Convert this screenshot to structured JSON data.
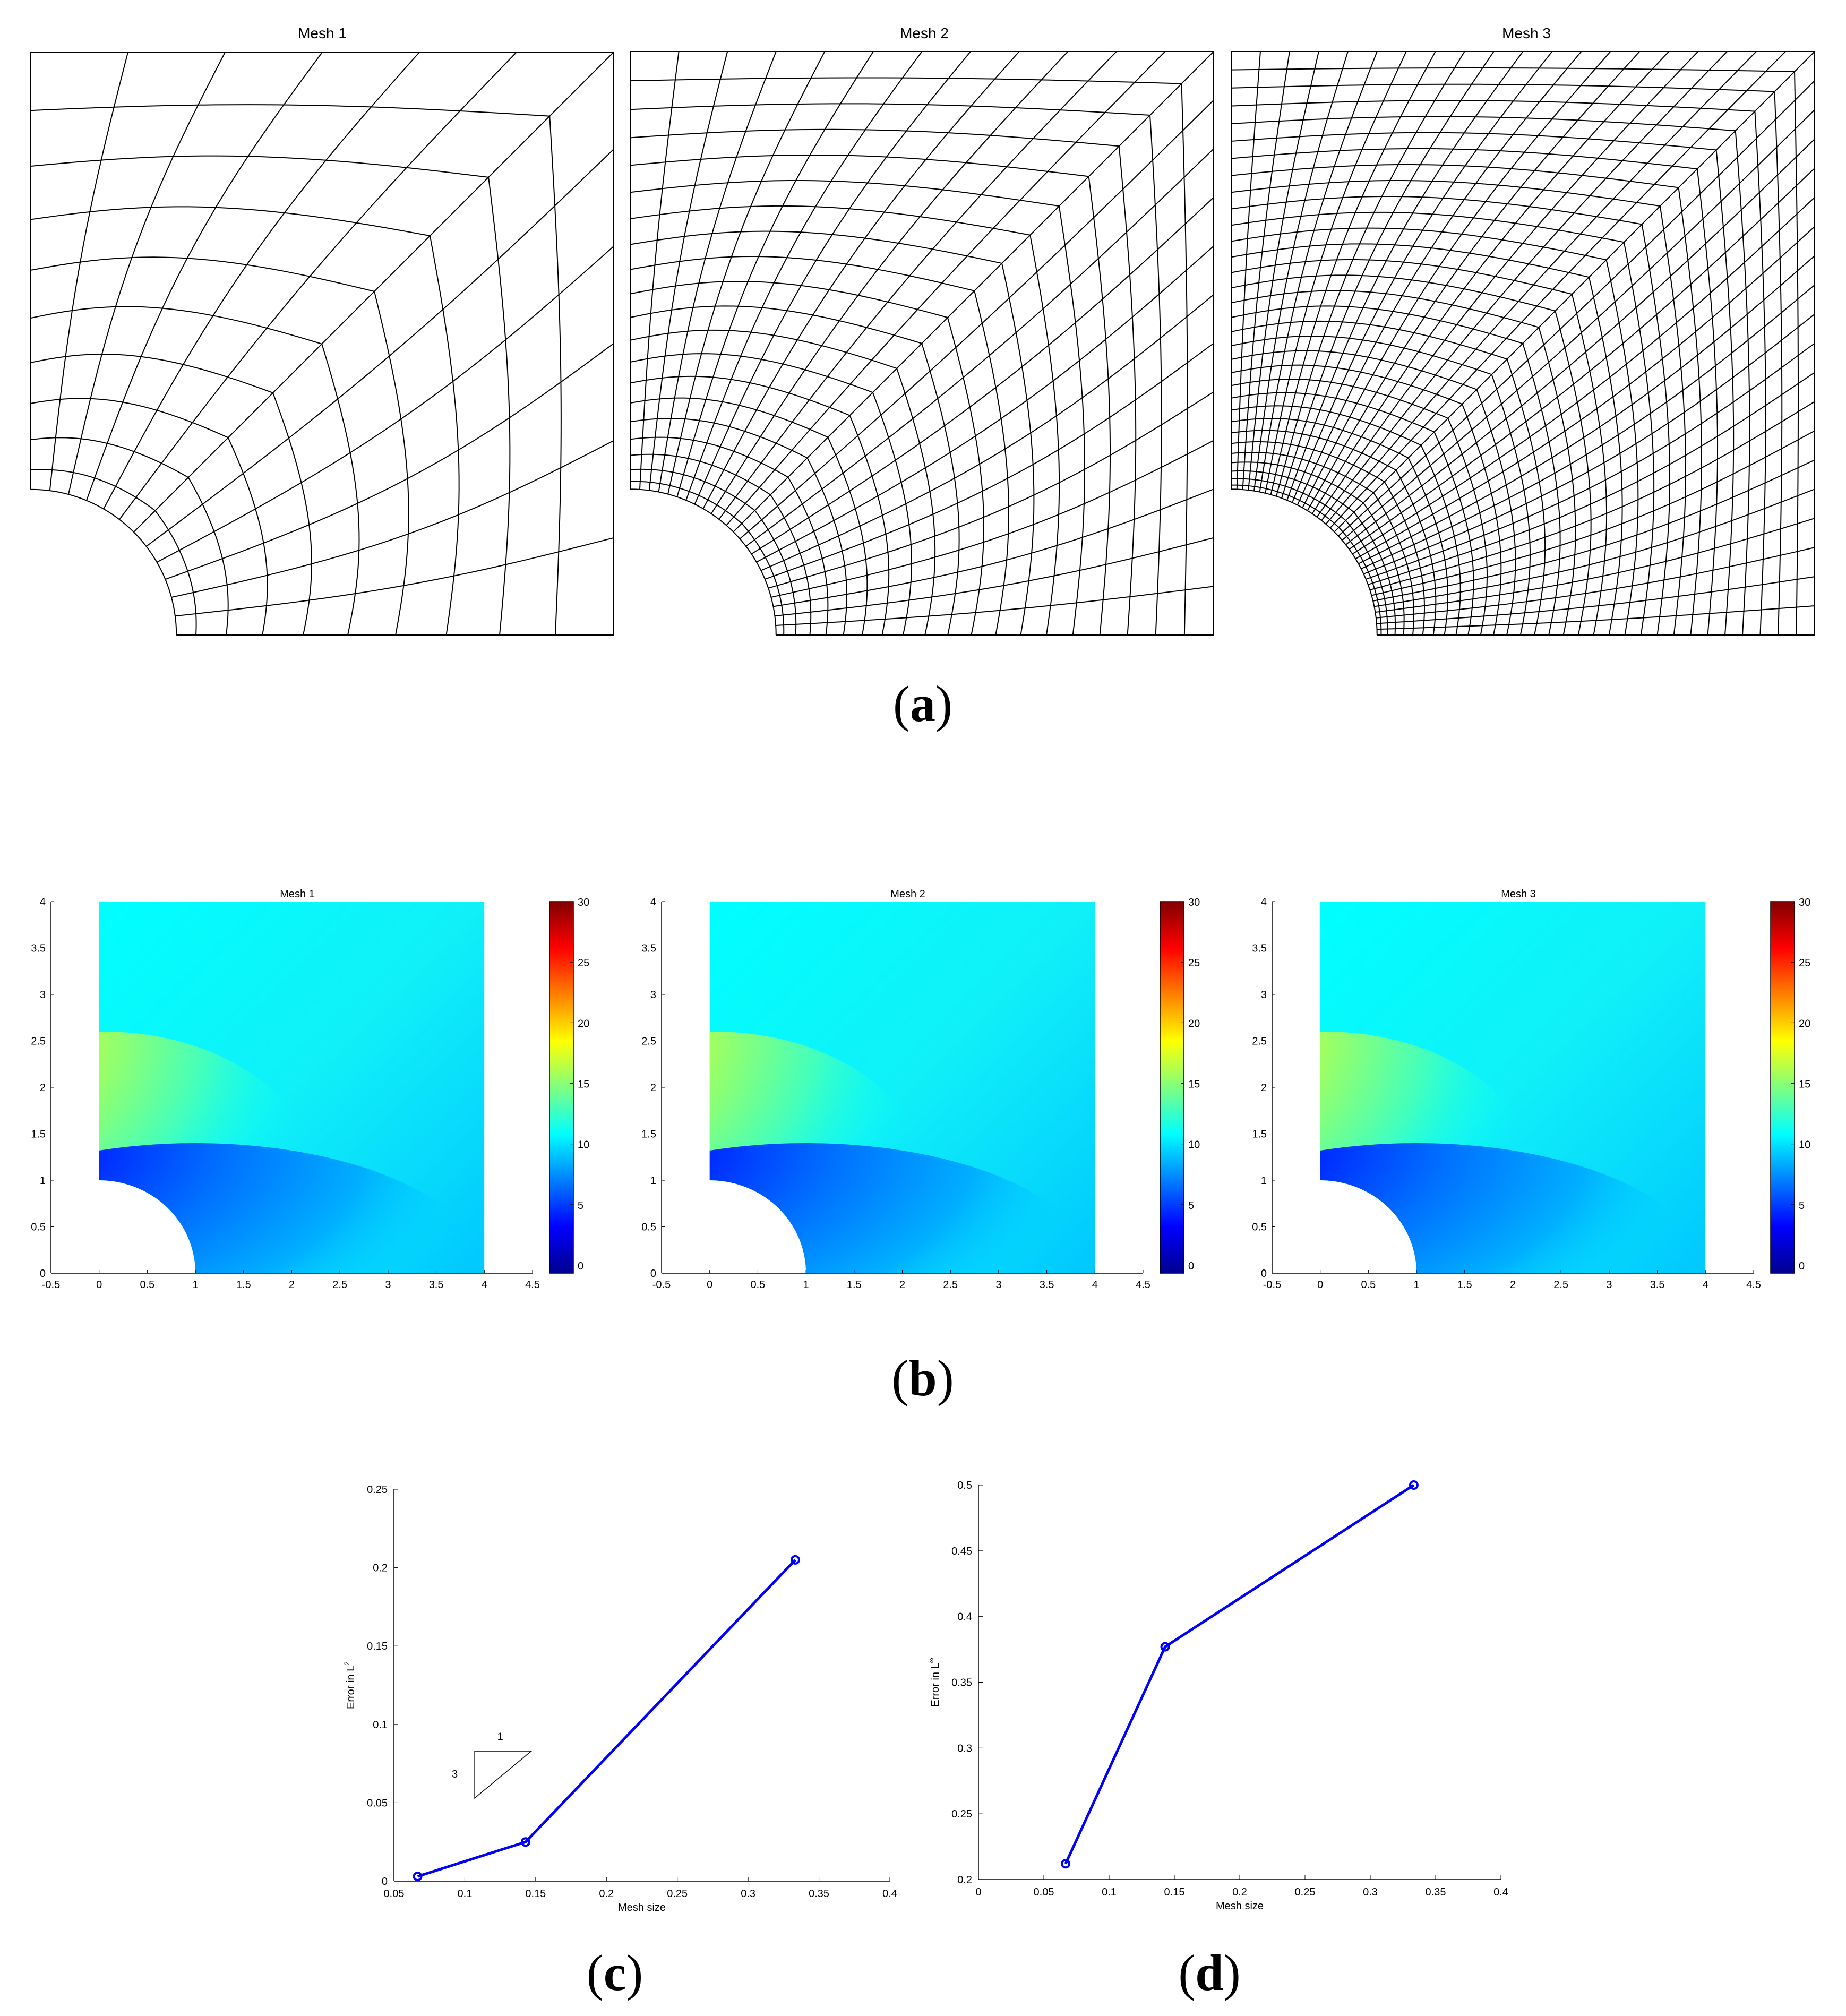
{
  "panel_a": {
    "label_letter": "a",
    "meshes": [
      {
        "title": "Mesh 1",
        "n_radial": 10,
        "n_arc": 6
      },
      {
        "title": "Mesh 2",
        "n_radial": 20,
        "n_arc": 12
      },
      {
        "title": "Mesh 3",
        "n_radial": 32,
        "n_arc": 20
      }
    ]
  },
  "panel_b": {
    "label_letter": "b",
    "plots": [
      {
        "title": "Mesh 1"
      },
      {
        "title": "Mesh 2"
      },
      {
        "title": "Mesh 3"
      }
    ],
    "x_ticks": [
      "-0.5",
      "0",
      "0.5",
      "1",
      "1.5",
      "2",
      "2.5",
      "3",
      "3.5",
      "4",
      "4.5"
    ],
    "y_ticks": [
      "0",
      "0.5",
      "1",
      "1.5",
      "2",
      "2.5",
      "3",
      "3.5",
      "4"
    ],
    "colorbar_ticks": [
      "0",
      "5",
      "10",
      "15",
      "20",
      "25",
      "30"
    ],
    "colors": {
      "jet_low": "#00008f",
      "jet_cyan": "#00ffff",
      "jet_high": "#800000"
    }
  },
  "chart_data": [
    {
      "type": "line",
      "panel": "c",
      "x": [
        0.0667,
        0.1429,
        0.3333
      ],
      "series": [
        {
          "values": [
            0.003,
            0.025,
            0.205
          ],
          "color": "#0000ff"
        }
      ],
      "xlabel": "Mesh size",
      "ylabel_prefix": "Error in L",
      "ylabel_sup": "2",
      "xlim": [
        0.05,
        0.4
      ],
      "ylim": [
        0,
        0.25
      ],
      "x_ticks": [
        "0.05",
        "0.1",
        "0.15",
        "0.2",
        "0.25",
        "0.3",
        "0.35",
        "0.4"
      ],
      "y_ticks": [
        "0",
        "0.05",
        "0.1",
        "0.15",
        "0.2",
        "0.25"
      ],
      "slope_triangle": {
        "run_label": "1",
        "rise_label": "3"
      }
    },
    {
      "type": "line",
      "panel": "d",
      "x": [
        0.0667,
        0.1429,
        0.3333
      ],
      "series": [
        {
          "values": [
            0.212,
            0.377,
            0.5
          ],
          "color": "#0000ff"
        }
      ],
      "xlabel": "Mesh size",
      "ylabel_prefix": "Error in L",
      "ylabel_sup": "∞",
      "xlim": [
        0,
        0.4
      ],
      "ylim": [
        0.2,
        0.5
      ],
      "x_ticks": [
        "0",
        "0.05",
        "0.1",
        "0.15",
        "0.2",
        "0.25",
        "0.3",
        "0.35",
        "0.4"
      ],
      "y_ticks": [
        "0.2",
        "0.25",
        "0.3",
        "0.35",
        "0.4",
        "0.45",
        "0.5"
      ]
    }
  ]
}
